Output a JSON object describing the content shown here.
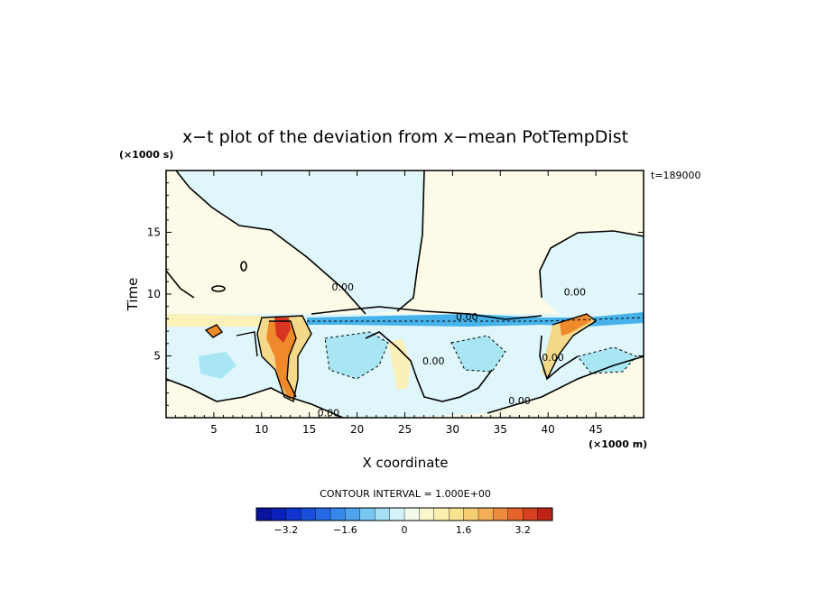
{
  "chart_data": {
    "type": "heatmap",
    "title": "x−t plot of the deviation from x−mean PotTempDist",
    "xlabel": "X coordinate",
    "ylabel": "Time",
    "x_unit": "(×1000 m)",
    "y_unit": "(×1000 s)",
    "time_stamp": "t=189000",
    "xlim": [
      0,
      50
    ],
    "ylim": [
      0,
      20
    ],
    "x_ticks": [
      "5",
      "10",
      "15",
      "20",
      "25",
      "30",
      "35",
      "40",
      "45"
    ],
    "y_ticks": [
      "5",
      "10",
      "15"
    ],
    "contour_interval": "CONTOUR INTERVAL = 1.000E+00",
    "contour_labels": [
      {
        "text": "0.00",
        "x": 18.5,
        "y": 10.3
      },
      {
        "text": "0.00",
        "x": 31.5,
        "y": 7.9
      },
      {
        "text": "0.00",
        "x": 42.8,
        "y": 9.9
      },
      {
        "text": "0.00",
        "x": 28.0,
        "y": 4.3
      },
      {
        "text": "0.00",
        "x": 40.5,
        "y": 4.6
      },
      {
        "text": "0.00",
        "x": 37.0,
        "y": 1.1
      },
      {
        "text": "0.00",
        "x": 17.0,
        "y": 0.1
      }
    ],
    "colorbar": {
      "min": -4.0,
      "max": 4.0,
      "step": 0.4,
      "tick_labels": [
        "−3.2",
        "−1.6",
        "0",
        "1.6",
        "3.2"
      ],
      "tick_values": [
        -3.2,
        -1.6,
        0,
        1.6,
        3.2
      ]
    },
    "colors": {
      "neutral": "#fdfbe8",
      "light_blue": "#dff6fb",
      "mid_blue": "#a8e6f4",
      "blue": "#47b2ea",
      "light_yellow": "#fbf0b8",
      "yellow": "#f5d98a",
      "orange": "#ef8a2c",
      "red": "#d73521"
    }
  }
}
